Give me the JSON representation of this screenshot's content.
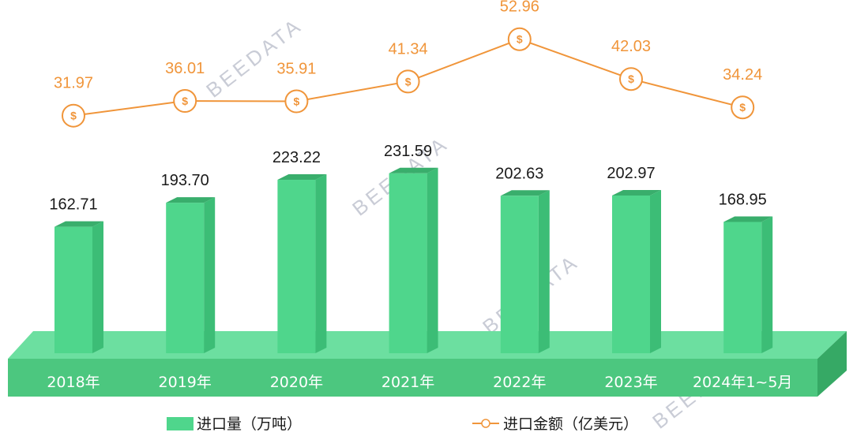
{
  "colors": {
    "bar_front": "#4fd68c",
    "bar_side": "#3cbd76",
    "bar_top": "#39ae6c",
    "base_front": "#4cc77f",
    "base_top": "#6cdfa0",
    "base_side": "#36a965",
    "line": "#f0953a",
    "watermark": "#c9ccd6"
  },
  "watermark": "BEEDATA",
  "chart_data": {
    "type": "bar",
    "categories": [
      "2018年",
      "2019年",
      "2020年",
      "2021年",
      "2022年",
      "2023年",
      "2024年1~5月"
    ],
    "series": [
      {
        "name": "进口量（万吨）",
        "type": "bar",
        "values": [
          162.71,
          193.7,
          223.22,
          231.59,
          202.63,
          202.97,
          168.95
        ],
        "labels": [
          "162.71",
          "193.70",
          "223.22",
          "231.59",
          "202.63",
          "202.97",
          "168.95"
        ]
      },
      {
        "name": "进口金额（亿美元）",
        "type": "line",
        "marker": "$",
        "values": [
          31.97,
          36.01,
          35.91,
          41.34,
          52.96,
          42.03,
          34.24
        ],
        "labels": [
          "31.97",
          "36.01",
          "35.91",
          "41.34",
          "52.96",
          "42.03",
          "34.24"
        ]
      }
    ],
    "legend_position": "bottom",
    "grid": false
  }
}
